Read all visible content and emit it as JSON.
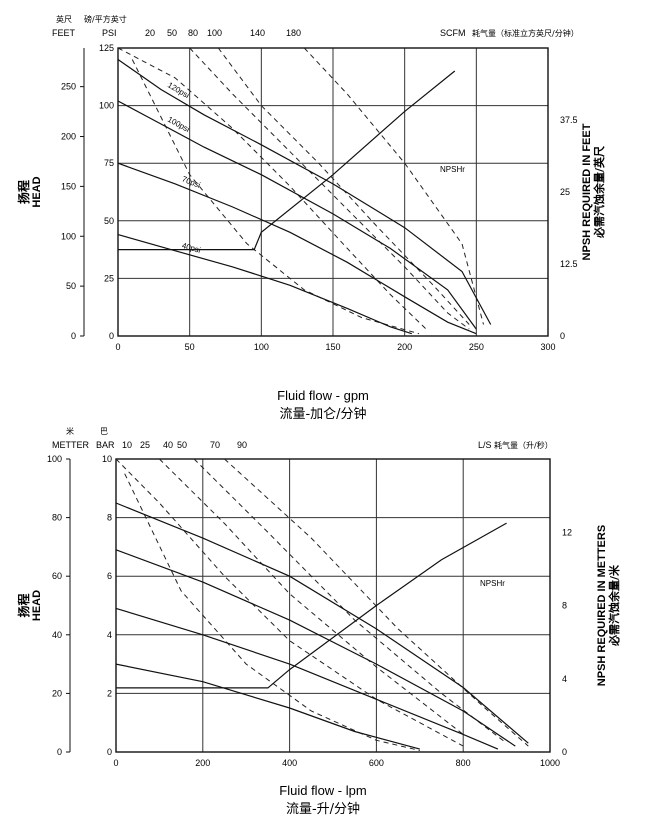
{
  "chart_data": [
    {
      "type": "line",
      "x_label_en": "Fluid flow - gpm",
      "x_label_cn": "流量-加仑/分钟",
      "x_ticks": [
        0,
        50,
        100,
        150,
        200,
        250,
        300
      ],
      "x_range": [
        0,
        300
      ],
      "head_ticks": [
        0,
        25,
        50,
        75,
        100,
        125
      ],
      "head_range": [
        0,
        125
      ],
      "feet_header_cn": "英尺",
      "feet_header": "FEET",
      "feet_ticks": [
        0,
        50,
        100,
        150,
        200,
        250
      ],
      "psi_header_cn": "磅/平方英寸",
      "psi_header": "PSI",
      "scfm_header": "SCFM",
      "scfm_header_cn": "耗气量（标准立方英尺/分钟）",
      "air_ticks": [
        20,
        50,
        80,
        100,
        140,
        180
      ],
      "npsh_ticks": [
        0,
        12.5,
        25,
        37.5
      ],
      "npsh_range": [
        0,
        50
      ],
      "head_label_cn": "扬程",
      "head_label_en": "HEAD",
      "npsh_title_en": "NPSH REQUIRED IN FEET",
      "npsh_title_cn": "必需汽蚀余量/英尺",
      "npsh_label": "NPSHr",
      "grid": true,
      "series": [
        {
          "name": "120psi",
          "points": [
            [
              0,
              120
            ],
            [
              30,
              107
            ],
            [
              60,
              96
            ],
            [
              100,
              83
            ],
            [
              150,
              66
            ],
            [
              200,
              47
            ],
            [
              240,
              28
            ],
            [
              260,
              5
            ]
          ]
        },
        {
          "name": "100psi",
          "points": [
            [
              0,
              102
            ],
            [
              30,
              92
            ],
            [
              60,
              82
            ],
            [
              100,
              70
            ],
            [
              150,
              53
            ],
            [
              190,
              38
            ],
            [
              230,
              20
            ],
            [
              250,
              3
            ]
          ]
        },
        {
          "name": "70psi",
          "points": [
            [
              0,
              75
            ],
            [
              40,
              66
            ],
            [
              80,
              56
            ],
            [
              120,
              45
            ],
            [
              160,
              32
            ],
            [
              200,
              17
            ],
            [
              230,
              6
            ],
            [
              250,
              1
            ]
          ]
        },
        {
          "name": "40psi",
          "points": [
            [
              0,
              44
            ],
            [
              40,
              37
            ],
            [
              80,
              30
            ],
            [
              120,
              22
            ],
            [
              160,
              12
            ],
            [
              190,
              4
            ],
            [
              205,
              1
            ]
          ]
        }
      ],
      "npsh_curve": [
        [
          0,
          15
        ],
        [
          95,
          15
        ],
        [
          100,
          18
        ],
        [
          150,
          28
        ],
        [
          200,
          39
        ],
        [
          235,
          46
        ]
      ],
      "air_curves": [
        {
          "points": [
            [
              0,
              125
            ],
            [
              40,
              112
            ],
            [
              80,
              90
            ],
            [
              120,
              65
            ],
            [
              160,
              38
            ],
            [
              190,
              18
            ],
            [
              215,
              3
            ]
          ]
        },
        {
          "points": [
            [
              50,
              125
            ],
            [
              80,
              105
            ],
            [
              120,
              80
            ],
            [
              160,
              55
            ],
            [
              200,
              30
            ],
            [
              230,
              10
            ],
            [
              245,
              3
            ]
          ]
        },
        {
          "points": [
            [
              70,
              125
            ],
            [
              100,
              100
            ],
            [
              140,
              75
            ],
            [
              180,
              48
            ],
            [
              220,
              22
            ],
            [
              245,
              5
            ]
          ]
        },
        {
          "points": [
            [
              130,
              125
            ],
            [
              160,
              105
            ],
            [
              200,
              75
            ],
            [
              240,
              40
            ],
            [
              255,
              5
            ]
          ]
        },
        {
          "points": [
            [
              10,
              120
            ],
            [
              50,
              70
            ],
            [
              90,
              40
            ],
            [
              130,
              20
            ],
            [
              170,
              8
            ],
            [
              210,
              1
            ]
          ]
        }
      ]
    },
    {
      "type": "line",
      "x_label_en": "Fluid flow - lpm",
      "x_label_cn": "流量-升/分钟",
      "x_ticks": [
        0,
        200,
        400,
        600,
        800,
        1000
      ],
      "x_range": [
        0,
        1000
      ],
      "head_ticks": [
        0,
        2,
        4,
        6,
        8,
        10
      ],
      "head_range": [
        0,
        10
      ],
      "meter_header_cn": "米",
      "meter_header": "METTER",
      "meter_ticks": [
        0,
        20,
        40,
        60,
        80,
        100
      ],
      "bar_header_cn": "巴",
      "bar_header": "BAR",
      "ls_header": "L/S",
      "ls_header_cn": "耗气量（升/秒）",
      "air_ticks": [
        10,
        25,
        40,
        50,
        70,
        90
      ],
      "npsh_ticks": [
        0,
        4,
        8,
        12
      ],
      "npsh_range": [
        0,
        16
      ],
      "head_label_cn": "扬程",
      "head_label_en": "HEAD",
      "npsh_title_en": "NPSH REQUIRED IN METTERS",
      "npsh_title_cn": "必需汽蚀余量/米",
      "npsh_label": "NPSHr",
      "grid": true,
      "series": [
        {
          "name": "",
          "points": [
            [
              0,
              8.5
            ],
            [
              200,
              7.3
            ],
            [
              400,
              6.0
            ],
            [
              600,
              4.2
            ],
            [
              800,
              2.2
            ],
            [
              950,
              0.3
            ]
          ]
        },
        {
          "name": "",
          "points": [
            [
              0,
              6.9
            ],
            [
              200,
              5.8
            ],
            [
              400,
              4.5
            ],
            [
              600,
              3.0
            ],
            [
              800,
              1.4
            ],
            [
              920,
              0.2
            ]
          ]
        },
        {
          "name": "",
          "points": [
            [
              0,
              4.9
            ],
            [
              200,
              4.0
            ],
            [
              400,
              3.0
            ],
            [
              600,
              1.8
            ],
            [
              800,
              0.6
            ],
            [
              880,
              0.1
            ]
          ]
        },
        {
          "name": "",
          "points": [
            [
              0,
              3.0
            ],
            [
              200,
              2.4
            ],
            [
              400,
              1.5
            ],
            [
              550,
              0.7
            ],
            [
              700,
              0.1
            ]
          ]
        }
      ],
      "npsh_curve": [
        [
          0,
          3.5
        ],
        [
          350,
          3.5
        ],
        [
          400,
          4.5
        ],
        [
          600,
          8
        ],
        [
          750,
          10.5
        ],
        [
          900,
          12.5
        ]
      ],
      "air_curves": [
        {
          "points": [
            [
              0,
              10
            ],
            [
              100,
              8.5
            ],
            [
              250,
              6.0
            ],
            [
              400,
              3.8
            ],
            [
              600,
              1.8
            ],
            [
              800,
              0.2
            ]
          ]
        },
        {
          "points": [
            [
              100,
              10
            ],
            [
              250,
              7.8
            ],
            [
              400,
              5.4
            ],
            [
              600,
              2.9
            ],
            [
              800,
              0.6
            ]
          ]
        },
        {
          "points": [
            [
              180,
              10
            ],
            [
              350,
              7.5
            ],
            [
              550,
              4.5
            ],
            [
              750,
              2.0
            ],
            [
              900,
              0.3
            ]
          ]
        },
        {
          "points": [
            [
              250,
              10
            ],
            [
              450,
              7.3
            ],
            [
              650,
              4.2
            ],
            [
              850,
              1.5
            ],
            [
              950,
              0.2
            ]
          ]
        },
        {
          "points": [
            [
              20,
              9.5
            ],
            [
              150,
              5.5
            ],
            [
              300,
              3.0
            ],
            [
              450,
              1.4
            ],
            [
              600,
              0.4
            ],
            [
              700,
              0.05
            ]
          ]
        }
      ]
    }
  ]
}
